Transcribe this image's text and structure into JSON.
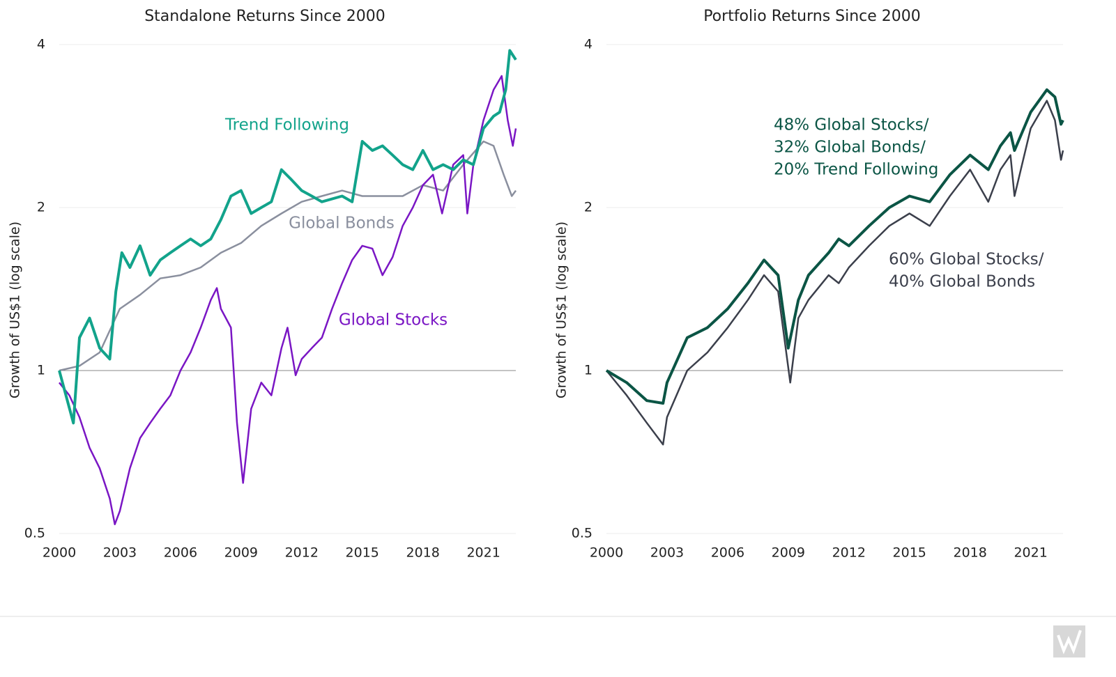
{
  "chart_data": [
    {
      "type": "line",
      "title": "Standalone Returns Since 2000",
      "y_label": "Growth of US$1 (log scale)",
      "log_y": true,
      "grid": true,
      "hline": 1,
      "xlim": [
        2000,
        2022.6
      ],
      "xticks": [
        2000,
        2003,
        2006,
        2009,
        2012,
        2015,
        2018,
        2021
      ],
      "ylim": [
        0.5,
        4
      ],
      "yticks": [
        0.5,
        1,
        2,
        4
      ],
      "series": [
        {
          "name": [
            "Global Bonds"
          ],
          "color": "#8a8f9e",
          "width": 2.5,
          "x": [
            2000,
            2001,
            2002,
            2003,
            2004,
            2005,
            2006,
            2007,
            2008,
            2009,
            2010,
            2011,
            2012,
            2013,
            2014,
            2015,
            2016,
            2017,
            2018,
            2019,
            2020,
            2021,
            2021.5,
            2022,
            2022.4,
            2022.6
          ],
          "values": [
            1.0,
            1.02,
            1.08,
            1.3,
            1.38,
            1.48,
            1.5,
            1.55,
            1.65,
            1.72,
            1.85,
            1.95,
            2.05,
            2.1,
            2.15,
            2.1,
            2.1,
            2.1,
            2.2,
            2.15,
            2.4,
            2.65,
            2.6,
            2.3,
            2.1,
            2.15
          ]
        },
        {
          "name": [
            "Global Stocks"
          ],
          "color": "#7a16c4",
          "width": 2.5,
          "x": [
            2000,
            2000.5,
            2001,
            2001.5,
            2002,
            2002.5,
            2002.75,
            2003,
            2003.5,
            2004,
            2004.5,
            2005,
            2005.5,
            2006,
            2006.5,
            2007,
            2007.5,
            2007.8,
            2008,
            2008.5,
            2008.8,
            2009.1,
            2009.5,
            2010,
            2010.5,
            2011,
            2011.3,
            2011.7,
            2012,
            2012.5,
            2013,
            2013.5,
            2014,
            2014.5,
            2015,
            2015.5,
            2016,
            2016.5,
            2017,
            2017.5,
            2018,
            2018.5,
            2018.95,
            2019.5,
            2020,
            2020.2,
            2020.5,
            2021,
            2021.5,
            2021.9,
            2022.2,
            2022.45,
            2022.6
          ],
          "values": [
            0.95,
            0.9,
            0.82,
            0.72,
            0.66,
            0.58,
            0.52,
            0.55,
            0.66,
            0.75,
            0.8,
            0.85,
            0.9,
            1.0,
            1.08,
            1.2,
            1.35,
            1.42,
            1.3,
            1.2,
            0.8,
            0.62,
            0.85,
            0.95,
            0.9,
            1.1,
            1.2,
            0.98,
            1.05,
            1.1,
            1.15,
            1.3,
            1.45,
            1.6,
            1.7,
            1.68,
            1.5,
            1.62,
            1.85,
            2.0,
            2.2,
            2.3,
            1.95,
            2.4,
            2.5,
            1.95,
            2.4,
            2.9,
            3.3,
            3.5,
            2.9,
            2.6,
            2.8
          ]
        },
        {
          "name": [
            "Trend Following"
          ],
          "color": "#12a38b",
          "width": 4,
          "x": [
            2000,
            2000.7,
            2001,
            2001.5,
            2002,
            2002.5,
            2002.8,
            2003.1,
            2003.5,
            2004,
            2004.5,
            2005,
            2005.5,
            2006,
            2006.5,
            2007,
            2007.5,
            2008,
            2008.5,
            2009,
            2009.5,
            2010,
            2010.5,
            2011,
            2011.5,
            2012,
            2012.5,
            2013,
            2014,
            2014.5,
            2015,
            2015.5,
            2016,
            2016.5,
            2017,
            2017.5,
            2018,
            2018.5,
            2019,
            2019.5,
            2020,
            2020.5,
            2021,
            2021.5,
            2021.8,
            2022.1,
            2022.3,
            2022.6
          ],
          "values": [
            1.0,
            0.8,
            1.15,
            1.25,
            1.1,
            1.05,
            1.4,
            1.65,
            1.55,
            1.7,
            1.5,
            1.6,
            1.65,
            1.7,
            1.75,
            1.7,
            1.75,
            1.9,
            2.1,
            2.15,
            1.95,
            2.0,
            2.05,
            2.35,
            2.25,
            2.15,
            2.1,
            2.05,
            2.1,
            2.05,
            2.65,
            2.55,
            2.6,
            2.5,
            2.4,
            2.35,
            2.55,
            2.35,
            2.4,
            2.35,
            2.45,
            2.4,
            2.8,
            2.95,
            3.0,
            3.3,
            3.9,
            3.75
          ]
        }
      ]
    },
    {
      "type": "line",
      "title": "Portfolio Returns Since 2000",
      "y_label": "Growth of US$1 (log scale)",
      "log_y": true,
      "grid": true,
      "hline": 1,
      "xlim": [
        2000,
        2022.6
      ],
      "xticks": [
        2000,
        2003,
        2006,
        2009,
        2012,
        2015,
        2018,
        2021
      ],
      "ylim": [
        0.5,
        4
      ],
      "yticks": [
        0.5,
        1,
        2,
        4
      ],
      "series": [
        {
          "name": [
            "60% Global Stocks/",
            "40% Global Bonds"
          ],
          "color": "#3b3f4b",
          "width": 2.5,
          "x": [
            2000,
            2001,
            2002,
            2002.8,
            2003,
            2004,
            2005,
            2006,
            2007,
            2007.8,
            2008.5,
            2009.1,
            2009.5,
            2010,
            2011,
            2011.5,
            2012,
            2013,
            2014,
            2015,
            2016,
            2017,
            2018,
            2018.9,
            2019.5,
            2020,
            2020.2,
            2021,
            2021.8,
            2022.2,
            2022.5,
            2022.6
          ],
          "values": [
            1.0,
            0.9,
            0.8,
            0.73,
            0.82,
            1.0,
            1.08,
            1.2,
            1.35,
            1.5,
            1.4,
            0.95,
            1.25,
            1.35,
            1.5,
            1.45,
            1.55,
            1.7,
            1.85,
            1.95,
            1.85,
            2.1,
            2.35,
            2.05,
            2.35,
            2.5,
            2.1,
            2.8,
            3.15,
            2.9,
            2.45,
            2.55
          ]
        },
        {
          "name": [
            "48% Global Stocks/",
            "32% Global Bonds/",
            "20% Trend Following"
          ],
          "color": "#0b5545",
          "width": 4,
          "x": [
            2000,
            2001,
            2002,
            2002.8,
            2003,
            2004,
            2005,
            2006,
            2007,
            2007.8,
            2008.5,
            2009,
            2009.5,
            2010,
            2011,
            2011.5,
            2012,
            2013,
            2014,
            2015,
            2016,
            2017,
            2018,
            2018.9,
            2019.5,
            2020,
            2020.2,
            2021,
            2021.8,
            2022.2,
            2022.5,
            2022.6
          ],
          "values": [
            1.0,
            0.95,
            0.88,
            0.87,
            0.95,
            1.15,
            1.2,
            1.3,
            1.45,
            1.6,
            1.5,
            1.1,
            1.35,
            1.5,
            1.65,
            1.75,
            1.7,
            1.85,
            2.0,
            2.1,
            2.05,
            2.3,
            2.5,
            2.35,
            2.6,
            2.75,
            2.55,
            3.0,
            3.3,
            3.2,
            2.85,
            2.9
          ]
        }
      ]
    }
  ]
}
